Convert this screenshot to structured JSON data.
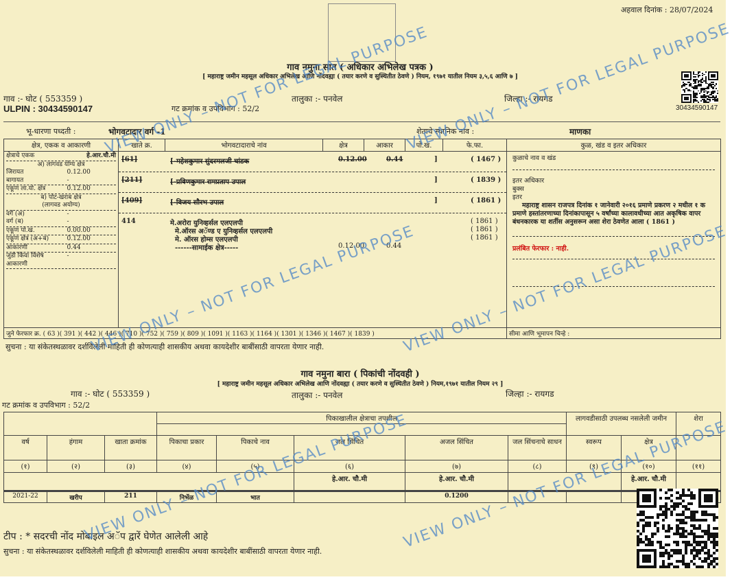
{
  "report_date": "अहवाल दिनांक : 28/07/2024",
  "form7": {
    "title": "गाव नमुना सात ( अधिकार अभिलेख पत्रक )",
    "subtitle": "[ महाराष्ट्र जमीन महसूल अधिकार अभिलेख आणि नोंदवह्या ( तयार करणे व सुस्थितीत ठेवणे ) नियम, १९७१ यातील नियम ३,५,६ आणि ७ ]",
    "village": "गाव :- घोट ( 553359 )",
    "taluka": "तालुका :- पनवेल",
    "district": "जिल्हा :- रायगड",
    "ulpin": "ULPIN : 30434590147",
    "qr_number": "30434590147",
    "gat": "गट क्रमांक व उपविभाग : 52/2",
    "tenure_label": "भू-धारणा पध्दती :",
    "tenure_value": "भोगवटादार वर्ग -1",
    "local_name_label": "शेताचे स्थानिक नाव :",
    "local_name_value": "माणका",
    "headers": [
      "क्षेत्र, एकक व आकारणी",
      "खाते क्र.",
      "भोगवटादाराचे नांव",
      "क्षेत्र",
      "आकार",
      "पो.ख.",
      "फे.फा.",
      "कुळ, खंड व इतर अधिकार"
    ],
    "area": {
      "unit_label": "क्षेत्राचे एकक",
      "unit_value": "हे.आर.चौ.मी",
      "cultivable": "अ) लागवड योग्य क्षेत्र",
      "jirayat_label": "जिरायत",
      "jirayat_value": "0.12.00",
      "bagayat_label": "बागायत",
      "bagayat_value": "-",
      "total_cult_label": "एकूण ला.यो. क्षेत्र",
      "total_cult_value": "0.12.00",
      "potkharab": "ब) पोट-खराब क्षेत्र",
      "potkharab2": "(लागवड अयोग्य)",
      "class_a_label": "वर्ग (अ)",
      "class_a_value": "-",
      "class_b_label": "वर्ग (ब)",
      "class_b_value": "-",
      "total_pk_label": "एकूण पो.ख.",
      "total_pk_value": "0.00.00",
      "total_area_label": "एकूण क्षेत्र (अ+ब)",
      "total_area_value": "0.12.00",
      "assessment_label": "आकारणी",
      "assessment_value": "0.44",
      "special_label": "जुडी किंवा विशेष",
      "special_value": "-",
      "special_label2": "आकारणी"
    },
    "holders": [
      {
        "khate": "[61]",
        "name": "[-महेशकुमार सुंदरमलजी चांडक",
        "area": "0.12.00",
        "akar": "0.44",
        "pokh": "]",
        "ferfar": "( 1467 )",
        "struck": true
      },
      {
        "khate": "[211]",
        "name": "[-प्रविणकुमार रामप्रताप उपाल",
        "area": "",
        "akar": "",
        "pokh": "]",
        "ferfar": "( 1839 )",
        "struck": true
      },
      {
        "khate": "[409]",
        "name": "[-विजय सौरभ उपाल",
        "area": "",
        "akar": "",
        "pokh": "]",
        "ferfar": "( 1861 )",
        "struck": true
      }
    ],
    "current": {
      "khate": "414",
      "names": [
        "मे.अरोरा युनिव्हर्सल एलएलपी",
        "मे.ऑरस अॅण्ड ए युनिव्हर्सल एलएलपी",
        "मे. ऑरस होम्स एलएलपी",
        "------सामाईक क्षेत्र-----"
      ],
      "ferfars": [
        "( 1861 )",
        "( 1861 )",
        "( 1861 )"
      ],
      "area": "0.12.00",
      "akar": "0.44"
    },
    "rights": {
      "kul": "कुळाचे नाव व खंड",
      "other1": "इतर अधिकार",
      "other2": "बुक्स",
      "other3": "इतर",
      "remark": "महाराष्ट्र शासन राजपत्र दिनांक १ जानेवारी २०१६ प्रमाणे प्रकरण २ मधील १ क प्रमाणे हस्तांतरणाच्या दिनांकापासून ५ वर्षांच्या कालावधीच्या आत अकृषिक वापर बंधनकारक या शर्तीस अनुसरून असा शेरा ठेवणेत आला ( 1861 )",
      "pending": "प्रलंबित फेरफार : नाही."
    },
    "old_ferfar": "जुने फेरफार क्र. ( 63 )( 391 )( 442 )( 446 )( 710 )( 752 )( 759 )( 809 )( 1091 )( 1163 )( 1164 )( 1301 )( 1346 )( 1467 )( 1839 )",
    "boundary": "सीमा आणि भूमापन चिन्हे :",
    "notice": "सुचना : या संकेतस्थळावर दर्शविलेली माहिती ही कोणत्याही शासकीय अथवा कायदेशीर बाबींसाठी वापरता येणार नाही."
  },
  "form12": {
    "title": "गाव नमुना बारा ( पिकांची नोंदवही )",
    "subtitle": "[ महाराष्ट्र जमीन महसूल अधिकार अभिलेख आणि नोंदवह्या ( तयार करणे व सुस्थितीत ठेवणे ) नियम,१९७१ यातील नियम २९ ]",
    "village": "गाव :- घोट ( 553359 )",
    "taluka": "तालुका :- पनवेल",
    "district": "जिल्हा :- रायगड",
    "gat": "गट क्रमांक व उपविभाग : 52/2",
    "group1": "पिकाखालील क्षेत्राचा तपशील",
    "group2": "लागवडीसाठी उपलब्ध नसलेली जमीन",
    "remark_head": "शेरा",
    "headers": [
      "वर्ष",
      "हंगाम",
      "खाता क्रमांक",
      "पिकाचा प्रकार",
      "पिकाचे नाव",
      "जल सिंचित",
      "अजल सिंचित",
      "जल सिंचनाचे साधन",
      "स्वरूप",
      "क्षेत्र"
    ],
    "numbers": [
      "(१)",
      "(२)",
      "(३)",
      "(४)",
      "(५)",
      "(६)",
      "(७)",
      "(८)",
      "(९)",
      "(१०)",
      "(११)"
    ],
    "unit": "हे.आर. चौ.मी",
    "rows": [
      [
        "2021-22",
        "खरीप",
        "211",
        "निर्भेळ",
        "भात",
        "",
        "0.1200",
        "",
        "",
        "",
        ""
      ]
    ],
    "tip": "टीप : * सदरची नोंद मोबाइल अॅप द्वारें घेणेत आलेली आहे",
    "notice": "सुचना : या संकेतस्थळावर दर्शविलेली माहिती ही कोणत्याही शासकीय अथवा कायदेशीर बाबींसाठी वापरता येणार नाही."
  },
  "watermark": "VIEW ONLY – NOT FOR LEGAL PURPOSE"
}
